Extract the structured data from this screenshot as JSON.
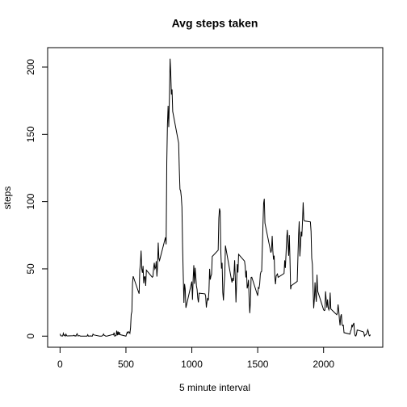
{
  "chart_data": {
    "type": "line",
    "title": "Avg steps taken",
    "x_label": "5 minute interval",
    "y_label": "steps",
    "xlim": [
      -94.2,
      2449.2
    ],
    "ylim": [
      -8.25,
      214.42
    ],
    "xticks": [
      0,
      500,
      1000,
      1500,
      2000
    ],
    "yticks": [
      0,
      50,
      100,
      150,
      200
    ],
    "grid": false,
    "series": [
      {
        "color": "#000000",
        "x": [
          0,
          5,
          10,
          15,
          20,
          25,
          30,
          35,
          40,
          45,
          50,
          55,
          100,
          105,
          110,
          115,
          120,
          125,
          130,
          135,
          140,
          145,
          150,
          155,
          200,
          205,
          210,
          215,
          220,
          225,
          230,
          235,
          240,
          245,
          250,
          255,
          300,
          305,
          310,
          315,
          320,
          325,
          330,
          335,
          340,
          345,
          350,
          355,
          400,
          405,
          410,
          415,
          420,
          425,
          430,
          435,
          440,
          445,
          450,
          455,
          500,
          505,
          510,
          515,
          520,
          525,
          530,
          535,
          540,
          545,
          550,
          555,
          600,
          605,
          610,
          615,
          620,
          625,
          630,
          635,
          640,
          645,
          650,
          655,
          700,
          705,
          710,
          715,
          720,
          725,
          730,
          735,
          740,
          745,
          750,
          755,
          800,
          805,
          810,
          815,
          820,
          825,
          830,
          835,
          840,
          845,
          850,
          855,
          900,
          905,
          910,
          915,
          920,
          925,
          930,
          935,
          940,
          945,
          950,
          955,
          1000,
          1005,
          1010,
          1015,
          1020,
          1025,
          1030,
          1035,
          1040,
          1045,
          1050,
          1055,
          1100,
          1105,
          1110,
          1115,
          1120,
          1125,
          1130,
          1135,
          1140,
          1145,
          1150,
          1155,
          1200,
          1205,
          1210,
          1215,
          1220,
          1225,
          1230,
          1235,
          1240,
          1245,
          1250,
          1255,
          1300,
          1305,
          1310,
          1315,
          1320,
          1325,
          1330,
          1335,
          1340,
          1345,
          1350,
          1355,
          1400,
          1405,
          1410,
          1415,
          1420,
          1425,
          1430,
          1435,
          1440,
          1445,
          1450,
          1455,
          1500,
          1505,
          1510,
          1515,
          1520,
          1525,
          1530,
          1535,
          1540,
          1545,
          1550,
          1555,
          1600,
          1605,
          1610,
          1615,
          1620,
          1625,
          1630,
          1635,
          1640,
          1645,
          1650,
          1655,
          1700,
          1705,
          1710,
          1715,
          1720,
          1725,
          1730,
          1735,
          1740,
          1745,
          1750,
          1755,
          1800,
          1805,
          1810,
          1815,
          1820,
          1825,
          1830,
          1835,
          1840,
          1845,
          1850,
          1855,
          1900,
          1905,
          1910,
          1915,
          1920,
          1925,
          1930,
          1935,
          1940,
          1945,
          1950,
          1955,
          2000,
          2005,
          2010,
          2015,
          2020,
          2025,
          2030,
          2035,
          2040,
          2045,
          2050,
          2055,
          2100,
          2105,
          2110,
          2115,
          2120,
          2125,
          2130,
          2135,
          2140,
          2145,
          2150,
          2155,
          2200,
          2205,
          2210,
          2215,
          2220,
          2225,
          2230,
          2235,
          2240,
          2245,
          2250,
          2255,
          2300,
          2305,
          2310,
          2315,
          2320,
          2325,
          2330,
          2335,
          2340,
          2345,
          2350,
          2355
        ],
        "values": [
          1.7,
          0.34,
          0.13,
          0.15,
          0.08,
          2.1,
          0.53,
          0.87,
          0,
          1.47,
          0.3,
          0.13,
          0.32,
          0.68,
          0.15,
          0.34,
          0,
          1.1,
          1.8,
          0.17,
          0.2,
          0.4,
          0.26,
          0,
          0,
          0,
          1.1,
          0,
          0,
          0.13,
          0,
          0.23,
          0,
          0,
          1.5,
          0.94,
          0,
          0,
          0,
          0,
          0.2,
          0.62,
          1.6,
          0.58,
          0.49,
          0.08,
          0,
          0,
          1.2,
          0.94,
          2.6,
          0,
          0.34,
          0.36,
          4.1,
          0.66,
          3.5,
          0.83,
          3.1,
          1.1,
          0,
          1.6,
          3.0,
          2.2,
          3.3,
          3.0,
          2.1,
          6.1,
          16.0,
          18.3,
          39.5,
          44.5,
          31.5,
          49.3,
          53.8,
          63.5,
          50.0,
          47.1,
          52.2,
          39.3,
          44.0,
          44.2,
          37.4,
          49.0,
          43.8,
          44.4,
          50.5,
          54.5,
          49.9,
          51.0,
          55.7,
          44.3,
          52.3,
          69.5,
          57.8,
          56.2,
          73.4,
          68.2,
          129.4,
          157.5,
          171.2,
          155.4,
          177.3,
          206.2,
          195.9,
          179.6,
          183.4,
          167.0,
          143.5,
          124.0,
          109.1,
          108.1,
          103.7,
          95.9,
          66.2,
          45.2,
          24.8,
          38.8,
          35.0,
          21.1,
          40.6,
          27.0,
          42.4,
          52.7,
          38.9,
          50.8,
          44.3,
          37.4,
          34.7,
          28.3,
          25.1,
          31.9,
          31.4,
          29.7,
          21.3,
          25.5,
          28.4,
          26.5,
          33.4,
          50.0,
          42.0,
          44.6,
          46.0,
          59.2,
          63.9,
          87.7,
          94.8,
          92.8,
          63.4,
          50.2,
          54.5,
          32.4,
          26.5,
          37.7,
          45.1,
          67.3,
          42.3,
          39.9,
          43.3,
          40.98,
          46.2,
          56.4,
          42.8,
          25.1,
          39.97,
          53.5,
          47.3,
          60.8,
          55.8,
          51.96,
          43.6,
          48.7,
          35.5,
          37.5,
          41.8,
          27.5,
          17.1,
          26.1,
          43.6,
          43.8,
          30.0,
          36.1,
          35.5,
          38.8,
          46.0,
          47.8,
          48.1,
          65.3,
          82.9,
          98.7,
          102.1,
          83.96,
          62.1,
          64.1,
          74.5,
          63.2,
          56.9,
          59.8,
          43.9,
          38.6,
          44.7,
          45.5,
          46.2,
          43.7,
          46.6,
          56.3,
          50.7,
          61.2,
          72.7,
          78.9,
          68.9,
          59.7,
          75.1,
          56.5,
          34.8,
          37.5,
          40.7,
          58.0,
          74.7,
          85.3,
          59.3,
          67.8,
          77.7,
          74.2,
          85.3,
          99.5,
          86.6,
          85.6,
          84.9,
          77.8,
          58.0,
          53.4,
          36.3,
          20.7,
          27.4,
          40.0,
          30.2,
          25.5,
          45.7,
          33.5,
          19.6,
          19.0,
          19.3,
          33.3,
          26.8,
          21.2,
          27.3,
          21.3,
          19.5,
          21.3,
          32.3,
          20.2,
          15.9,
          17.2,
          23.5,
          19.2,
          12.5,
          8.0,
          14.7,
          16.3,
          8.7,
          7.8,
          8.1,
          2.6,
          1.5,
          3.7,
          4.8,
          8.5,
          7.1,
          8.7,
          9.8,
          2.2,
          0.3,
          0.1,
          1.6,
          4.6,
          3.3,
          2.8,
          0,
          0.8,
          0.96,
          1.6,
          2.6,
          4.7,
          3.3,
          0.6,
          0.2,
          1.1
        ]
      }
    ]
  }
}
